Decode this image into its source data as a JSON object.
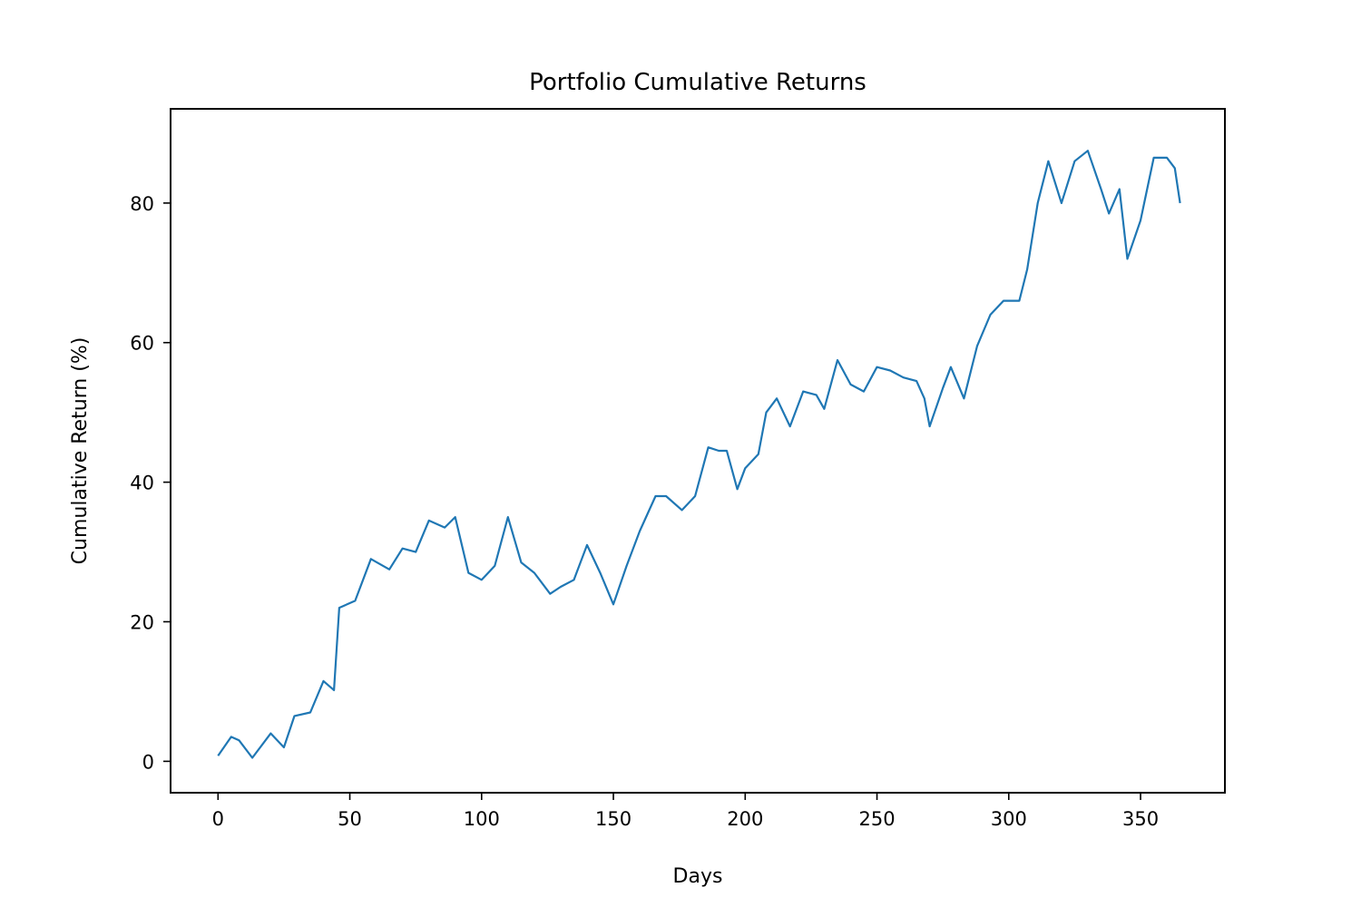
{
  "chart_data": {
    "type": "line",
    "title": "Portfolio Cumulative Returns",
    "xlabel": "Days",
    "ylabel": "Cumulative Return (%)",
    "xlim": [
      -18,
      382
    ],
    "ylim": [
      -4.5,
      93.5
    ],
    "xticks": [
      0,
      50,
      100,
      150,
      200,
      250,
      300,
      350
    ],
    "yticks": [
      0,
      20,
      40,
      60,
      80
    ],
    "grid": false,
    "legend": "none",
    "line_color": "#1f77b4",
    "series": [
      {
        "x": [
          0,
          5,
          8,
          13,
          20,
          25,
          29,
          35,
          40,
          44,
          46,
          52,
          58,
          65,
          70,
          75,
          80,
          86,
          90,
          95,
          100,
          105,
          110,
          115,
          120,
          126,
          130,
          135,
          140,
          145,
          150,
          155,
          160,
          166,
          170,
          176,
          181,
          186,
          190,
          193,
          197,
          200,
          205,
          208,
          212,
          217,
          222,
          227,
          230,
          235,
          240,
          245,
          250,
          255,
          260,
          265,
          268,
          270,
          275,
          278,
          283,
          288,
          293,
          298,
          304,
          307,
          311,
          315,
          320,
          325,
          330,
          335,
          338,
          342,
          345,
          350,
          355,
          360,
          363,
          365
        ],
        "y": [
          0.8,
          3.5,
          3.0,
          0.5,
          4.0,
          2.0,
          6.5,
          7.0,
          11.5,
          10.2,
          22.0,
          23.0,
          29.0,
          27.5,
          30.5,
          30.0,
          34.5,
          33.5,
          35.0,
          27.0,
          26.0,
          28.0,
          35.0,
          28.5,
          27.0,
          24.0,
          25.0,
          26.0,
          31.0,
          27.0,
          22.5,
          28.0,
          33.0,
          38.0,
          38.0,
          36.0,
          38.0,
          45.0,
          44.5,
          44.5,
          39.0,
          42.0,
          44.0,
          50.0,
          52.0,
          48.0,
          53.0,
          52.5,
          50.5,
          57.5,
          54.0,
          53.0,
          56.5,
          56.0,
          55.0,
          54.5,
          52.0,
          48.0,
          53.5,
          56.5,
          52.0,
          59.5,
          64.0,
          66.0,
          66.0,
          70.5,
          80.0,
          86.0,
          80.0,
          86.0,
          87.5,
          82.0,
          78.5,
          82.0,
          72.0,
          77.5,
          86.5,
          86.5,
          85.0,
          80.0
        ]
      }
    ]
  }
}
